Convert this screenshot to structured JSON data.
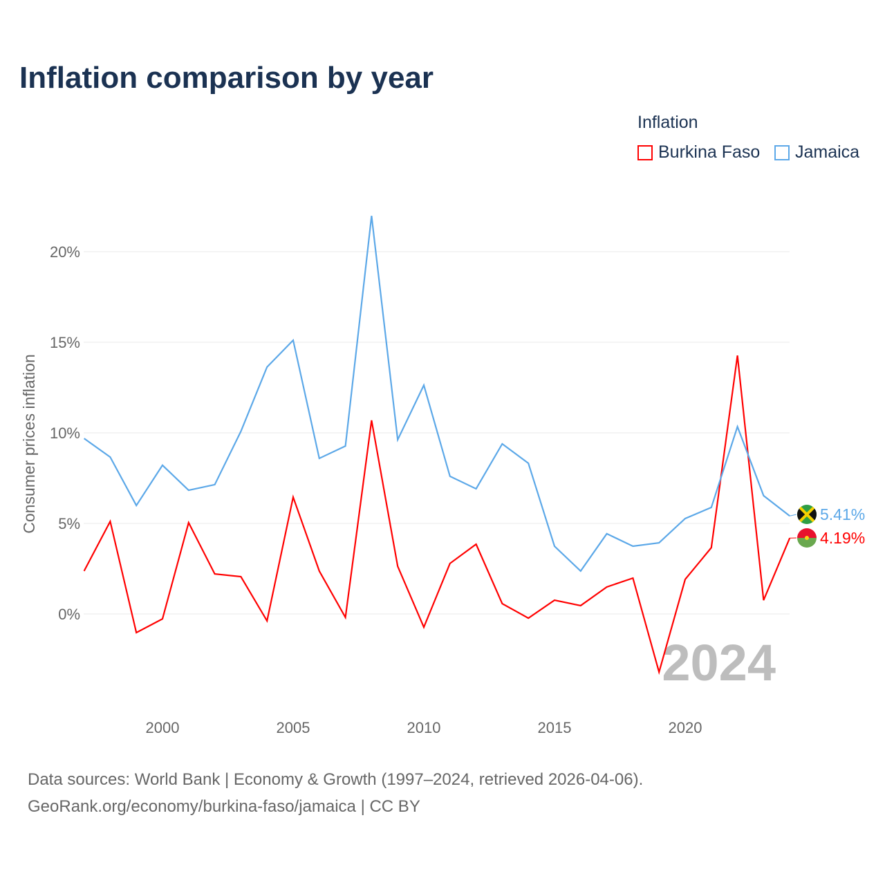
{
  "chart_data": {
    "type": "line",
    "title": "Inflation comparison by year",
    "xlabel": "",
    "ylabel": "Consumer prices inflation",
    "legend_title": "Inflation",
    "legend_position": "top-right",
    "xlim": [
      1997,
      2024
    ],
    "ylim": [
      -4.7,
      22
    ],
    "x_ticks": [
      2000,
      2005,
      2010,
      2015,
      2020
    ],
    "y_ticks": [
      0,
      5,
      10,
      15,
      20
    ],
    "y_tick_labels": [
      "0%",
      "5%",
      "10%",
      "15%",
      "20%"
    ],
    "grid": true,
    "watermark_year": "2024",
    "x": [
      1997,
      1998,
      1999,
      2000,
      2001,
      2002,
      2003,
      2004,
      2005,
      2006,
      2007,
      2008,
      2009,
      2010,
      2011,
      2012,
      2013,
      2014,
      2015,
      2016,
      2017,
      2018,
      2019,
      2020,
      2021,
      2022,
      2023,
      2024
    ],
    "series": [
      {
        "name": "Burkina Faso",
        "color": "#ff0000",
        "end_label": "4.19%",
        "values": [
          2.37,
          5.11,
          -1.03,
          -0.27,
          5.04,
          2.21,
          2.06,
          -0.38,
          6.45,
          2.37,
          -0.19,
          10.69,
          2.63,
          -0.73,
          2.79,
          3.85,
          0.57,
          -0.23,
          0.76,
          0.46,
          1.49,
          1.98,
          -3.21,
          1.91,
          3.66,
          14.27,
          0.76,
          4.19
        ]
      },
      {
        "name": "Jamaica",
        "color": "#5ca8e8",
        "end_label": "5.41%",
        "values": [
          9.69,
          8.66,
          5.99,
          8.21,
          6.83,
          7.14,
          10.08,
          13.63,
          15.11,
          8.59,
          9.27,
          21.98,
          9.62,
          12.63,
          7.6,
          6.91,
          9.39,
          8.32,
          3.74,
          2.37,
          4.43,
          3.74,
          3.93,
          5.27,
          5.88,
          10.34,
          6.53,
          5.41
        ]
      }
    ]
  },
  "footer": {
    "line1": "Data sources: World Bank | Economy & Growth (1997–2024, retrieved 2026-04-06).",
    "line2": "GeoRank.org/economy/burkina-faso/jamaica | CC BY"
  }
}
